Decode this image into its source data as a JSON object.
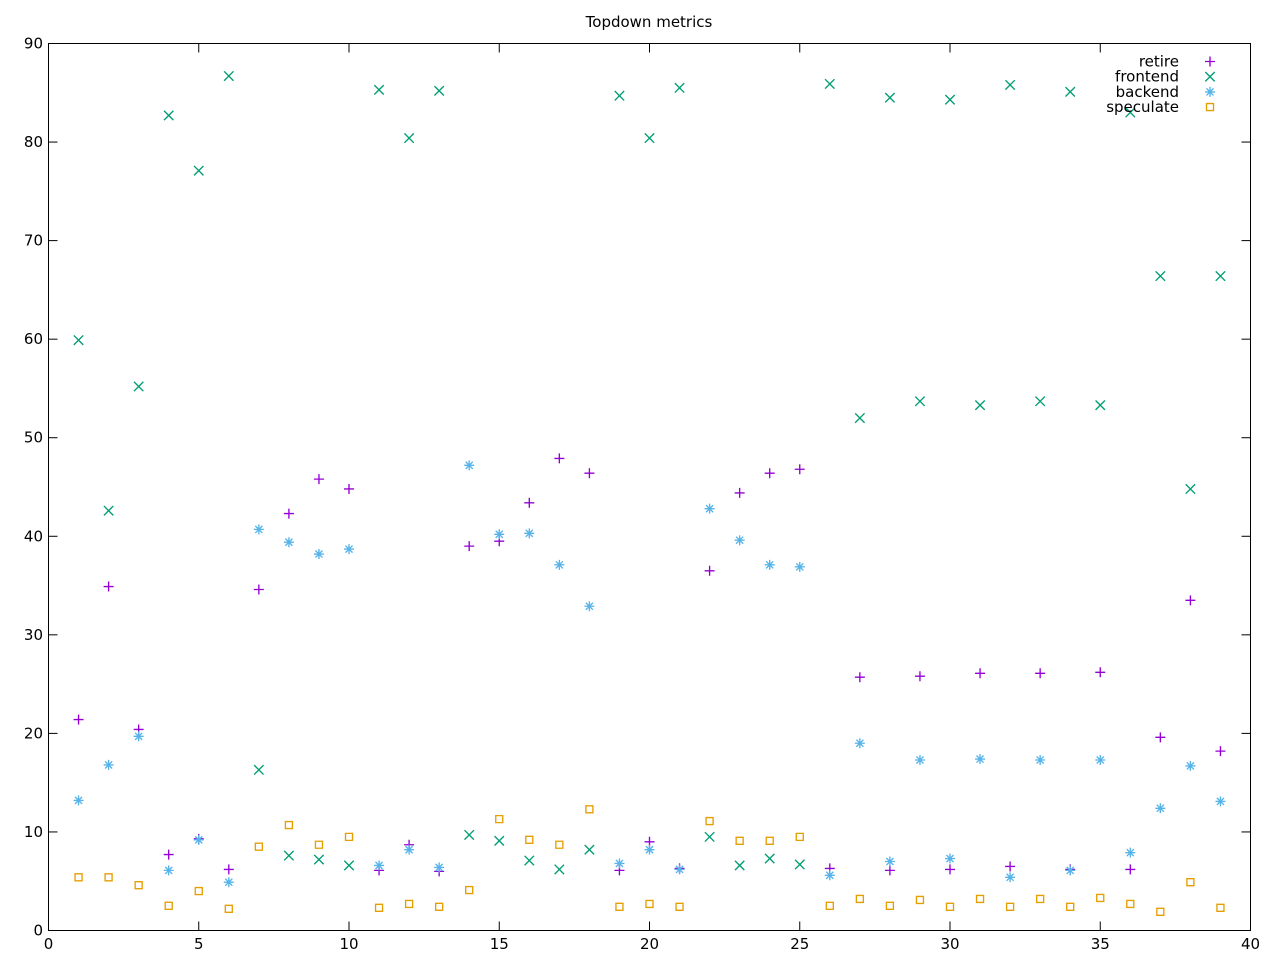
{
  "chart_data": {
    "type": "scatter",
    "title": "Topdown metrics",
    "xlabel": "",
    "ylabel": "",
    "xlim": [
      0,
      40
    ],
    "ylim": [
      0,
      90
    ],
    "xticks": [
      0,
      5,
      10,
      15,
      20,
      25,
      30,
      35,
      40
    ],
    "yticks": [
      0,
      10,
      20,
      30,
      40,
      50,
      60,
      70,
      80,
      90
    ],
    "grid": false,
    "legend_position": "top-right-inside",
    "background_color": "#ffffff",
    "border_color": "#000000",
    "series": [
      {
        "name": "retire",
        "marker": "plus",
        "color": "#9400D3",
        "points": [
          [
            1,
            21.4
          ],
          [
            2,
            34.9
          ],
          [
            3,
            20.4
          ],
          [
            4,
            7.7
          ],
          [
            5,
            9.3
          ],
          [
            6,
            6.2
          ],
          [
            7,
            34.6
          ],
          [
            8,
            42.3
          ],
          [
            9,
            45.8
          ],
          [
            10,
            44.8
          ],
          [
            11,
            6.1
          ],
          [
            12,
            8.7
          ],
          [
            13,
            6.0
          ],
          [
            14,
            39.0
          ],
          [
            15,
            39.5
          ],
          [
            16,
            43.4
          ],
          [
            17,
            47.9
          ],
          [
            18,
            46.4
          ],
          [
            19,
            6.1
          ],
          [
            20,
            9.0
          ],
          [
            21,
            6.3
          ],
          [
            22,
            36.5
          ],
          [
            23,
            44.4
          ],
          [
            24,
            46.4
          ],
          [
            25,
            46.8
          ],
          [
            26,
            6.3
          ],
          [
            27,
            25.7
          ],
          [
            28,
            6.1
          ],
          [
            29,
            25.8
          ],
          [
            30,
            6.2
          ],
          [
            31,
            26.1
          ],
          [
            32,
            6.5
          ],
          [
            33,
            26.1
          ],
          [
            34,
            6.2
          ],
          [
            35,
            26.2
          ],
          [
            36,
            6.2
          ],
          [
            37,
            19.6
          ],
          [
            38,
            33.5
          ],
          [
            39,
            18.2
          ]
        ]
      },
      {
        "name": "frontend",
        "marker": "cross",
        "color": "#009E73",
        "points": [
          [
            1,
            59.9
          ],
          [
            2,
            42.6
          ],
          [
            3,
            55.2
          ],
          [
            4,
            82.7
          ],
          [
            5,
            77.1
          ],
          [
            6,
            86.7
          ],
          [
            7,
            16.3
          ],
          [
            8,
            7.6
          ],
          [
            9,
            7.2
          ],
          [
            10,
            6.6
          ],
          [
            11,
            85.3
          ],
          [
            12,
            80.4
          ],
          [
            13,
            85.2
          ],
          [
            14,
            9.7
          ],
          [
            15,
            9.1
          ],
          [
            16,
            7.1
          ],
          [
            17,
            6.2
          ],
          [
            18,
            8.2
          ],
          [
            19,
            84.7
          ],
          [
            20,
            80.4
          ],
          [
            21,
            85.5
          ],
          [
            22,
            9.5
          ],
          [
            23,
            6.6
          ],
          [
            24,
            7.3
          ],
          [
            25,
            6.7
          ],
          [
            26,
            85.9
          ],
          [
            27,
            52.0
          ],
          [
            28,
            84.5
          ],
          [
            29,
            53.7
          ],
          [
            30,
            84.3
          ],
          [
            31,
            53.3
          ],
          [
            32,
            85.8
          ],
          [
            33,
            53.7
          ],
          [
            34,
            85.1
          ],
          [
            35,
            53.3
          ],
          [
            36,
            83.0
          ],
          [
            37,
            66.4
          ],
          [
            38,
            44.8
          ],
          [
            39,
            66.4
          ]
        ]
      },
      {
        "name": "backend",
        "marker": "asterisk",
        "color": "#56B4E9",
        "points": [
          [
            1,
            13.2
          ],
          [
            2,
            16.8
          ],
          [
            3,
            19.7
          ],
          [
            4,
            6.1
          ],
          [
            5,
            9.2
          ],
          [
            6,
            4.9
          ],
          [
            7,
            40.7
          ],
          [
            8,
            39.4
          ],
          [
            9,
            38.2
          ],
          [
            10,
            38.7
          ],
          [
            11,
            6.6
          ],
          [
            12,
            8.2
          ],
          [
            13,
            6.4
          ],
          [
            14,
            47.2
          ],
          [
            15,
            40.2
          ],
          [
            16,
            40.3
          ],
          [
            17,
            37.1
          ],
          [
            18,
            32.9
          ],
          [
            19,
            6.8
          ],
          [
            20,
            8.2
          ],
          [
            21,
            6.2
          ],
          [
            22,
            42.8
          ],
          [
            23,
            39.6
          ],
          [
            24,
            37.1
          ],
          [
            25,
            36.9
          ],
          [
            26,
            5.6
          ],
          [
            27,
            19.0
          ],
          [
            28,
            7.0
          ],
          [
            29,
            17.3
          ],
          [
            30,
            7.3
          ],
          [
            31,
            17.4
          ],
          [
            32,
            5.4
          ],
          [
            33,
            17.3
          ],
          [
            34,
            6.1
          ],
          [
            35,
            17.3
          ],
          [
            36,
            7.9
          ],
          [
            37,
            12.4
          ],
          [
            38,
            16.7
          ],
          [
            39,
            13.1
          ]
        ]
      },
      {
        "name": "speculate",
        "marker": "open-square",
        "color": "#E69F00",
        "points": [
          [
            1,
            5.4
          ],
          [
            2,
            5.4
          ],
          [
            3,
            4.6
          ],
          [
            4,
            2.5
          ],
          [
            5,
            4.0
          ],
          [
            6,
            2.2
          ],
          [
            7,
            8.5
          ],
          [
            8,
            10.7
          ],
          [
            9,
            8.7
          ],
          [
            10,
            9.5
          ],
          [
            11,
            2.3
          ],
          [
            12,
            2.7
          ],
          [
            13,
            2.4
          ],
          [
            14,
            4.1
          ],
          [
            15,
            11.3
          ],
          [
            16,
            9.2
          ],
          [
            17,
            8.7
          ],
          [
            18,
            12.3
          ],
          [
            19,
            2.4
          ],
          [
            20,
            2.7
          ],
          [
            21,
            2.4
          ],
          [
            22,
            11.1
          ],
          [
            23,
            9.1
          ],
          [
            24,
            9.1
          ],
          [
            25,
            9.5
          ],
          [
            26,
            2.5
          ],
          [
            27,
            3.2
          ],
          [
            28,
            2.5
          ],
          [
            29,
            3.1
          ],
          [
            30,
            2.4
          ],
          [
            31,
            3.2
          ],
          [
            32,
            2.4
          ],
          [
            33,
            3.2
          ],
          [
            34,
            2.4
          ],
          [
            35,
            3.3
          ],
          [
            36,
            2.7
          ],
          [
            37,
            1.9
          ],
          [
            38,
            4.9
          ],
          [
            39,
            2.3
          ]
        ]
      }
    ]
  }
}
